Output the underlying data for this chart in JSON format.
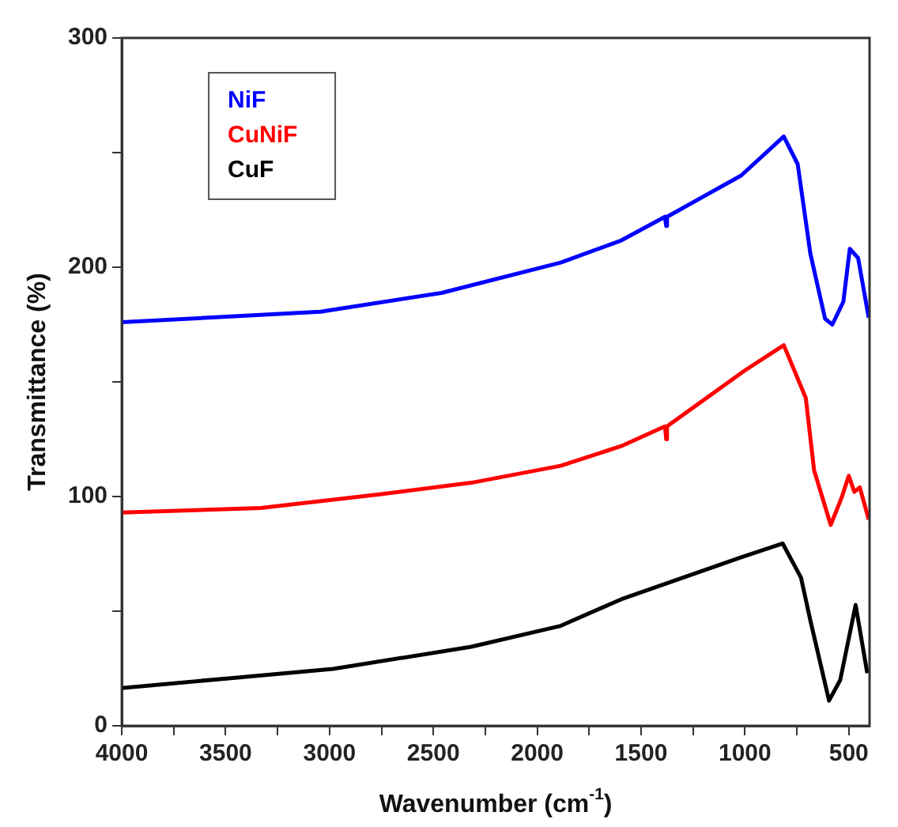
{
  "chart_data": {
    "type": "line",
    "xlabel": "Wavenumber (cm$^{-1}$)",
    "ylabel": "Transmittance (%)",
    "xlim": [
      4000,
      400
    ],
    "ylim": [
      0,
      300
    ],
    "xticks": [
      4000,
      {
        "value": 3750,
        "label": null
      },
      3500,
      {
        "value": 3250,
        "label": null
      },
      3000,
      {
        "value": 2750,
        "label": null
      },
      2500,
      {
        "value": 2250,
        "label": null
      },
      2000,
      {
        "value": 1750,
        "label": null
      },
      1500,
      {
        "value": 1250,
        "label": null
      },
      1000,
      {
        "value": 750,
        "label": null
      },
      500
    ],
    "yticks": [
      0,
      {
        "value": 50,
        "label": null
      },
      100,
      {
        "value": 150,
        "label": null
      },
      200,
      {
        "value": 250,
        "label": null
      },
      300
    ],
    "grid": false,
    "legend": "top left",
    "marker": "none",
    "line_style": "solid",
    "series": [
      {
        "name": "NiF",
        "color": "#0000ff",
        "x": [
          4000,
          3043,
          2461,
          1887,
          1595,
          1385,
          1379,
          1375,
          1018,
          813,
          746,
          685,
          614,
          579,
          526,
          495,
          455,
          404
        ],
        "values": [
          176,
          180.6,
          188.8,
          202,
          211.7,
          222,
          218,
          222,
          240,
          257,
          245,
          206,
          177.5,
          175,
          185,
          208,
          204,
          178
        ]
      },
      {
        "name": "CuNiF",
        "color": "#ff0000",
        "x": [
          4000,
          3330,
          2751,
          2317,
          1887,
          1595,
          1385,
          1379,
          1375,
          1000,
          813,
          707,
          667,
          587,
          534,
          500,
          473,
          447,
          404
        ],
        "values": [
          93,
          95,
          101,
          106,
          113.4,
          122,
          130.6,
          125,
          130.6,
          155,
          166,
          143,
          111.5,
          87.6,
          99.6,
          109,
          102,
          104,
          90
        ]
      },
      {
        "name": "CuF",
        "color": "#000000",
        "x": [
          4000,
          3474,
          2982,
          2317,
          1887,
          1595,
          1018,
          818,
          730,
          685,
          595,
          541,
          467,
          411
        ],
        "values": [
          16.5,
          20.8,
          24.8,
          34.5,
          43.6,
          55.2,
          73.5,
          79.5,
          64.6,
          46,
          11,
          20,
          52.7,
          23
        ]
      }
    ]
  }
}
